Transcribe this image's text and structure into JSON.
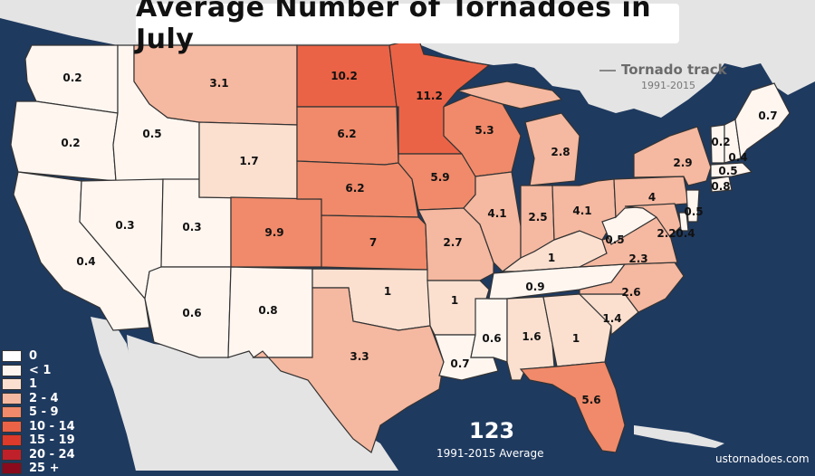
{
  "title": "Average Number of Tornadoes in July",
  "track_legend": {
    "label": "Tornado track",
    "years": "1991-2015"
  },
  "legend": {
    "items": [
      {
        "label": "0",
        "color": "#ffffff"
      },
      {
        "label": "< 1",
        "color": "#fff6f0"
      },
      {
        "label": "1",
        "color": "#fbe0d0"
      },
      {
        "label": "2 - 4",
        "color": "#f5b8a0"
      },
      {
        "label": "5 - 9",
        "color": "#f08a6a"
      },
      {
        "label": "10 - 14",
        "color": "#eb6346"
      },
      {
        "label": "15 - 19",
        "color": "#dc3a2a"
      },
      {
        "label": "20 - 24",
        "color": "#c0202a"
      },
      {
        "label": "25 +",
        "color": "#8b0a1c"
      }
    ]
  },
  "total": "123",
  "total_caption": "1991-2015 Average",
  "credit": "ustornadoes.com",
  "colors": {
    "ocean": "#1f3a5f",
    "land_foreign": "#e4e4e4",
    "border": "#333333"
  },
  "states": [
    {
      "name": "WA",
      "value": "0.2"
    },
    {
      "name": "OR",
      "value": "0.2"
    },
    {
      "name": "CA",
      "value": "0.4"
    },
    {
      "name": "ID",
      "value": "0.5"
    },
    {
      "name": "NV",
      "value": "0.3"
    },
    {
      "name": "UT",
      "value": "0.3"
    },
    {
      "name": "AZ",
      "value": "0.6"
    },
    {
      "name": "MT",
      "value": "3.1"
    },
    {
      "name": "WY",
      "value": "1.7"
    },
    {
      "name": "CO",
      "value": "9.9"
    },
    {
      "name": "NM",
      "value": "0.8"
    },
    {
      "name": "ND",
      "value": "10.2"
    },
    {
      "name": "SD",
      "value": "6.2"
    },
    {
      "name": "NE",
      "value": "6.2"
    },
    {
      "name": "KS",
      "value": "7"
    },
    {
      "name": "OK",
      "value": "1"
    },
    {
      "name": "TX",
      "value": "3.3"
    },
    {
      "name": "MN",
      "value": "11.2"
    },
    {
      "name": "IA",
      "value": "5.9"
    },
    {
      "name": "MO",
      "value": "2.7"
    },
    {
      "name": "AR",
      "value": "1"
    },
    {
      "name": "LA",
      "value": "0.7"
    },
    {
      "name": "WI",
      "value": "5.3"
    },
    {
      "name": "IL",
      "value": "4.1"
    },
    {
      "name": "MS",
      "value": "0.6"
    },
    {
      "name": "MI",
      "value": "2.8"
    },
    {
      "name": "IN",
      "value": "2.5"
    },
    {
      "name": "KY",
      "value": "1"
    },
    {
      "name": "TN",
      "value": "0.9"
    },
    {
      "name": "AL",
      "value": "1.6"
    },
    {
      "name": "OH",
      "value": "4.1"
    },
    {
      "name": "GA",
      "value": "1"
    },
    {
      "name": "FL",
      "value": "5.6"
    },
    {
      "name": "SC",
      "value": "1.4"
    },
    {
      "name": "NC",
      "value": "2.6"
    },
    {
      "name": "VA",
      "value": "2.3"
    },
    {
      "name": "WV",
      "value": "0.5"
    },
    {
      "name": "PA",
      "value": "4"
    },
    {
      "name": "NY",
      "value": "2.9"
    },
    {
      "name": "MD",
      "value": "2.2"
    },
    {
      "name": "DE",
      "value": "0.4"
    },
    {
      "name": "NJ",
      "value": "0.5"
    },
    {
      "name": "CT",
      "value": "0.8"
    },
    {
      "name": "MA",
      "value": "0.5"
    },
    {
      "name": "VT",
      "value": "0.2"
    },
    {
      "name": "NH",
      "value": "0.4"
    },
    {
      "name": "ME",
      "value": "0.7"
    }
  ]
}
